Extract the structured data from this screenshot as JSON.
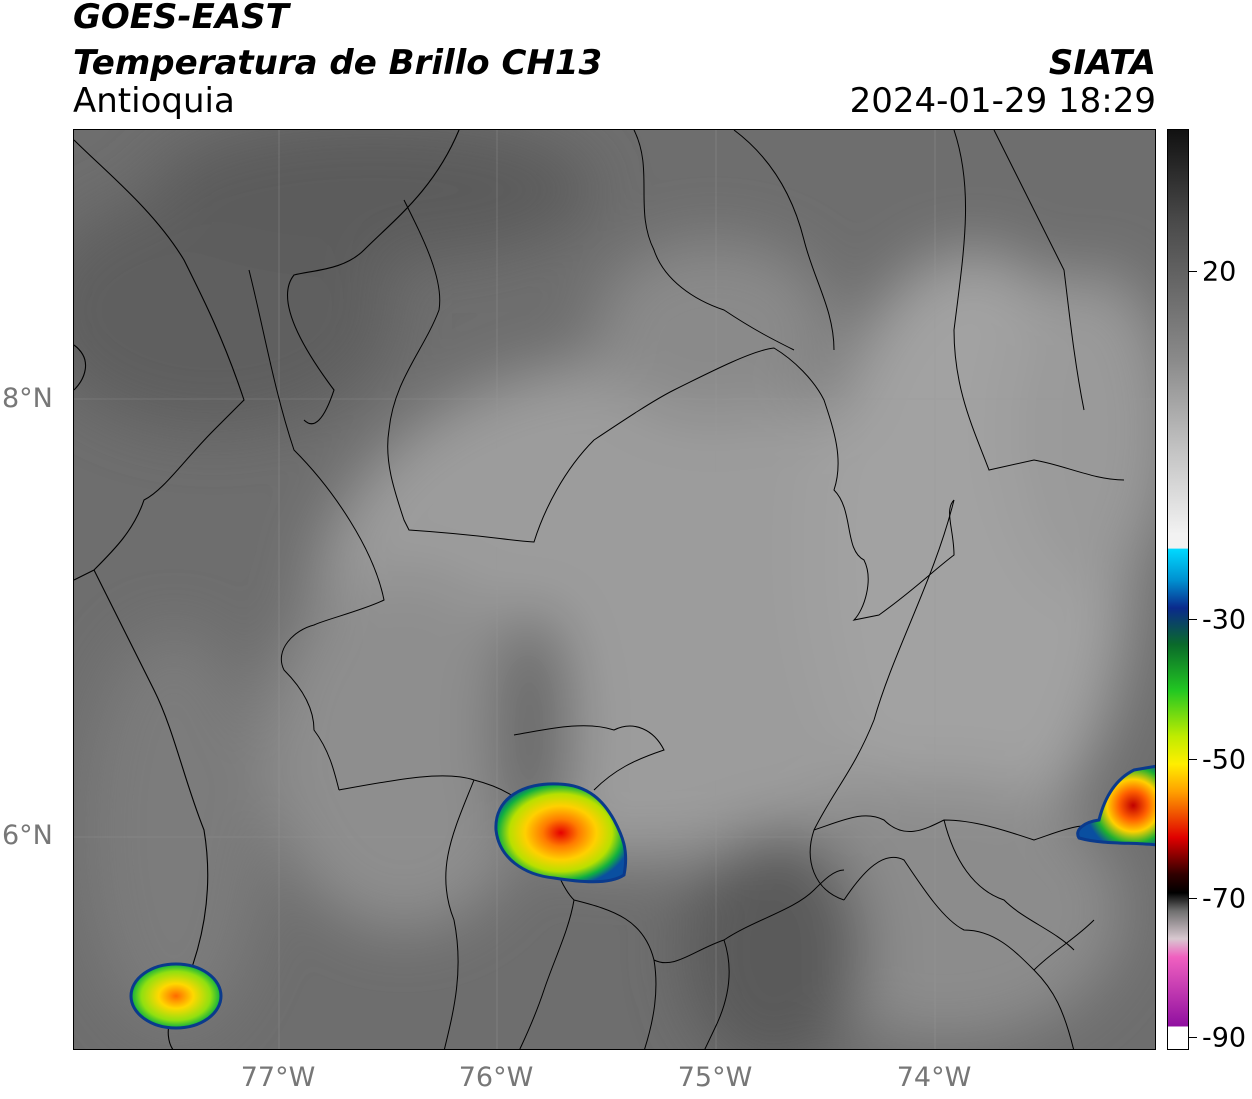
{
  "header": {
    "satellite": "GOES-EAST",
    "product": "Temperatura de Brillo CH13",
    "region": "Antioquia",
    "organization": "SIATA",
    "datetime": "2024-01-29 18:29"
  },
  "map": {
    "lat_labels": [
      "8°N",
      "6°N"
    ],
    "lon_labels": [
      "77°W",
      "76°W",
      "75°W",
      "74°W"
    ]
  },
  "colorbar": {
    "ticks": [
      "20",
      "-30",
      "-50",
      "-70",
      "-90"
    ],
    "colors": {
      "warm_black": "#111111",
      "mid_gray": "#8a8a8a",
      "white": "#f2f2f2",
      "cyan": "#00d9ff",
      "blue": "#0a2a8c",
      "green": "#22c722",
      "yellow": "#ffee00",
      "orange": "#ffa000",
      "red": "#e00000",
      "dark_red": "#300000",
      "pink": "#f060c0",
      "purple": "#9010a0"
    }
  }
}
